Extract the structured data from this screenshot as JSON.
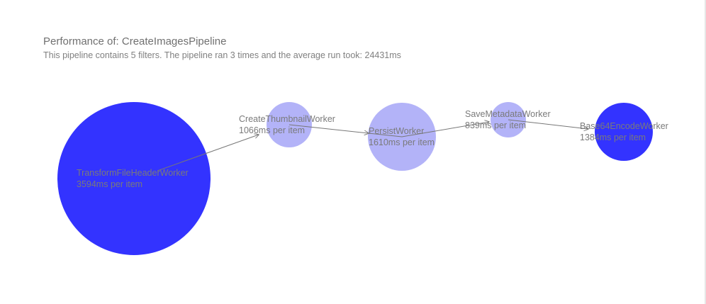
{
  "title": "Performance of: CreateImagesPipeline",
  "subtitle": "This pipeline contains 5 filters. The pipeline ran 3 times and the average run took: 24431ms",
  "colors": {
    "strong": "#3333ff",
    "light": "#b3b3f8",
    "edge": "#777777",
    "label": "#7a7a7a"
  },
  "nodes": [
    {
      "name": "TransformFileHeaderWorker",
      "stat": "3594ms per item",
      "ms": 3594,
      "tone": "strong"
    },
    {
      "name": "CreateThumbnailWorker",
      "stat": "1066ms per item",
      "ms": 1066,
      "tone": "light"
    },
    {
      "name": "PersistWorker",
      "stat": "1610ms per item",
      "ms": 1610,
      "tone": "light"
    },
    {
      "name": "SaveMetadataWorker",
      "stat": "839ms per item",
      "ms": 839,
      "tone": "light"
    },
    {
      "name": "Base64EncodeWorker",
      "stat": "1384ms per item",
      "ms": 1384,
      "tone": "strong"
    }
  ]
}
